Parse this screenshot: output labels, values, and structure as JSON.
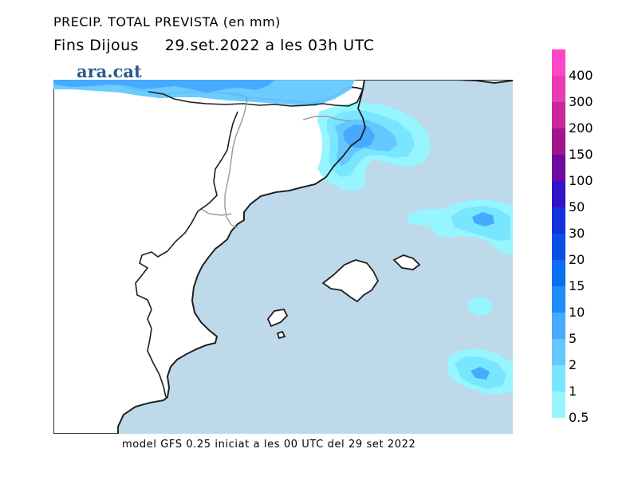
{
  "header": {
    "title": "PRECIP. TOTAL PREVISTA (en mm)",
    "subtitle_left": "Fins Dijous",
    "subtitle_right": "29.set.2022 a les 03h UTC"
  },
  "watermark": "ara.cat",
  "footer": "model GFS 0.25 iniciat a les 00 UTC del 29 set 2022",
  "colors": {
    "sea": "#bed9e9",
    "land": "#ffffff",
    "coast": "#1e1e1e",
    "border": "#9a9a9a"
  },
  "legend": {
    "unit": "mm",
    "levels": [
      {
        "label": "400",
        "color": "#ff46c8"
      },
      {
        "label": "300",
        "color": "#e83cb4"
      },
      {
        "label": "200",
        "color": "#c8289c"
      },
      {
        "label": "150",
        "color": "#a0148c"
      },
      {
        "label": "100",
        "color": "#6e0aa0"
      },
      {
        "label": "50",
        "color": "#3214c8"
      },
      {
        "label": "30",
        "color": "#1432dc"
      },
      {
        "label": "20",
        "color": "#0a50e6"
      },
      {
        "label": "15",
        "color": "#0a6ef0"
      },
      {
        "label": "10",
        "color": "#1e8cfa"
      },
      {
        "label": "5",
        "color": "#46aaff"
      },
      {
        "label": "2",
        "color": "#64c8ff"
      },
      {
        "label": "1",
        "color": "#78e6ff"
      },
      {
        "label": "0.5",
        "color": "#96f5ff"
      }
    ]
  }
}
